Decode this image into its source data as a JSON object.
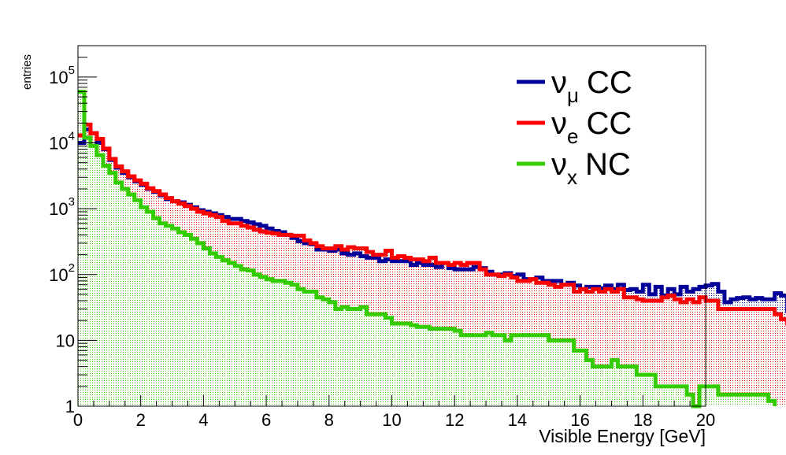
{
  "chart_data": {
    "type": "histogram",
    "xlabel": "Visible Energy [GeV]",
    "ylabel": "entries",
    "xlim": [
      0,
      20
    ],
    "ylim": [
      1,
      300000
    ],
    "yscale": "log",
    "x_ticks": [
      "0",
      "2",
      "4",
      "6",
      "8",
      "10",
      "12",
      "14",
      "16",
      "18",
      "20"
    ],
    "y_ticks": [
      {
        "value": 1,
        "label": "1",
        "sup": ""
      },
      {
        "value": 10,
        "label": "10",
        "sup": ""
      },
      {
        "value": 100,
        "label": "10",
        "sup": "2"
      },
      {
        "value": 1000,
        "label": "10",
        "sup": "3"
      },
      {
        "value": 10000,
        "label": "10",
        "sup": "4"
      },
      {
        "value": 100000,
        "label": "10",
        "sup": "5"
      }
    ],
    "bin_edges_start": 0,
    "bin_width": 0.2,
    "grid": false,
    "legend_position": "top-right",
    "series": [
      {
        "name": "CC",
        "greek": "ν",
        "subscript": "μ",
        "color": "#000099",
        "fill": "#d8dcf0",
        "values": [
          10000,
          16000,
          14000,
          10000,
          8000,
          5500,
          4200,
          3500,
          3000,
          2600,
          2300,
          2000,
          1800,
          1600,
          1400,
          1300,
          1250,
          1150,
          1050,
          950,
          900,
          850,
          800,
          750,
          700,
          700,
          650,
          620,
          580,
          550,
          500,
          460,
          440,
          400,
          360,
          320,
          300,
          290,
          240,
          240,
          230,
          240,
          210,
          200,
          210,
          190,
          180,
          180,
          160,
          170,
          160,
          160,
          160,
          140,
          150,
          140,
          140,
          130,
          150,
          125,
          120,
          120,
          120,
          130,
          125,
          110,
          100,
          100,
          105,
          95,
          100,
          85,
          85,
          90,
          80,
          80,
          80,
          70,
          75,
          68,
          60,
          65,
          65,
          62,
          68,
          60,
          70,
          58,
          60,
          55,
          70,
          50,
          65,
          48,
          60,
          50,
          65,
          55,
          60,
          65,
          68,
          72,
          55,
          38,
          42,
          44,
          45,
          42,
          44,
          42,
          42,
          52,
          48,
          28,
          23,
          5
        ]
      },
      {
        "name": "CC",
        "greek": "ν",
        "subscript": "e",
        "color": "#ff0000",
        "fill": "#f4d2d2",
        "values": [
          13000,
          19000,
          14000,
          11500,
          8200,
          5700,
          4400,
          3700,
          3100,
          2700,
          2400,
          2050,
          1850,
          1650,
          1450,
          1300,
          1200,
          1100,
          1000,
          900,
          850,
          800,
          750,
          650,
          600,
          600,
          550,
          520,
          480,
          450,
          430,
          420,
          400,
          400,
          390,
          390,
          330,
          300,
          270,
          250,
          250,
          270,
          240,
          260,
          250,
          250,
          220,
          200,
          200,
          230,
          180,
          190,
          180,
          170,
          170,
          160,
          180,
          150,
          150,
          140,
          150,
          140,
          150,
          150,
          120,
          100,
          100,
          95,
          100,
          90,
          80,
          80,
          85,
          75,
          75,
          70,
          65,
          70,
          70,
          55,
          60,
          55,
          60,
          55,
          60,
          55,
          60,
          45,
          45,
          42,
          40,
          40,
          40,
          45,
          48,
          42,
          38,
          42,
          38,
          45,
          40,
          40,
          30,
          30,
          30,
          30,
          30,
          30,
          30,
          30,
          30,
          25,
          21,
          18,
          12,
          2
        ]
      },
      {
        "name": "NC",
        "greek": "ν",
        "subscript": "x",
        "color": "#33cc00",
        "fill": "#d6eed0",
        "values": [
          60000,
          12000,
          9000,
          6500,
          4500,
          3500,
          2500,
          2000,
          1650,
          1350,
          1050,
          900,
          720,
          600,
          550,
          500,
          440,
          400,
          350,
          300,
          250,
          210,
          185,
          165,
          150,
          135,
          120,
          115,
          100,
          92,
          85,
          80,
          80,
          75,
          70,
          60,
          55,
          55,
          45,
          42,
          38,
          30,
          32,
          30,
          30,
          32,
          25,
          25,
          25,
          22,
          18,
          18,
          18,
          17,
          16,
          16,
          15,
          15,
          15,
          15,
          14,
          12,
          12,
          12,
          12,
          13,
          12,
          12,
          10,
          12,
          12,
          12,
          12,
          12,
          12,
          10,
          10,
          10,
          10,
          7,
          7,
          5,
          4,
          4,
          4,
          5,
          4,
          4,
          4,
          3,
          3,
          3,
          2,
          2,
          2,
          2,
          2,
          1.5,
          1,
          2,
          2,
          2,
          1.5,
          1.5,
          1.5,
          1.5,
          1.5,
          1.5,
          1.5,
          1.5,
          1.2
        ]
      }
    ]
  }
}
